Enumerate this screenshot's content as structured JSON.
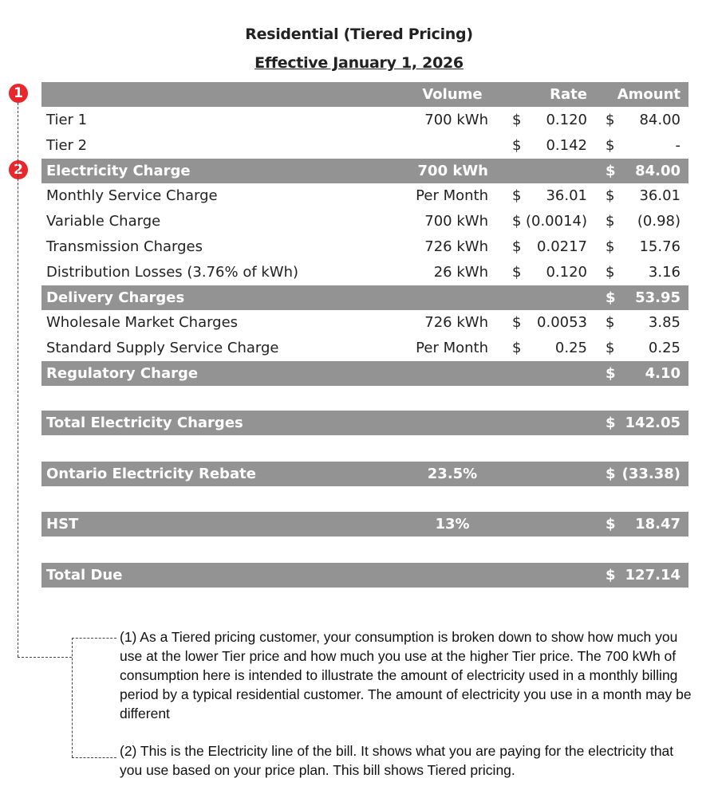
{
  "title": "Residential (Tiered Pricing)",
  "subtitle": "Effective January 1, 2026",
  "header": {
    "volume": "Volume",
    "rate": "Rate",
    "amount": "Amount"
  },
  "rows": [
    {
      "label": "Tier 1",
      "volume": "700 kWh",
      "rate_cur": "$",
      "rate": "0.120",
      "amt_cur": "$",
      "amount": "84.00",
      "style": "plain"
    },
    {
      "label": "Tier 2",
      "volume": "",
      "rate_cur": "$",
      "rate": "0.142",
      "amt_cur": "$",
      "amount": "-",
      "style": "plain"
    },
    {
      "label": "Electricity Charge",
      "volume": "700 kWh",
      "rate_cur": "",
      "rate": "",
      "amt_cur": "$",
      "amount": "84.00",
      "style": "gray"
    },
    {
      "label": "Monthly Service Charge",
      "volume": "Per Month",
      "rate_cur": "$",
      "rate": "36.01",
      "amt_cur": "$",
      "amount": "36.01",
      "style": "plain"
    },
    {
      "label": "Variable Charge",
      "volume": "700 kWh",
      "rate_cur": "$",
      "rate": "(0.0014)",
      "amt_cur": "$",
      "amount": "(0.98)",
      "style": "plain"
    },
    {
      "label": "Transmission Charges",
      "volume": "726 kWh",
      "rate_cur": "$",
      "rate": "0.0217",
      "amt_cur": "$",
      "amount": "15.76",
      "style": "plain"
    },
    {
      "label": "Distribution Losses (3.76% of kWh)",
      "volume": "26 kWh",
      "rate_cur": "$",
      "rate": "0.120",
      "amt_cur": "$",
      "amount": "3.16",
      "style": "plain"
    },
    {
      "label": "Delivery Charges",
      "volume": "",
      "rate_cur": "",
      "rate": "",
      "amt_cur": "$",
      "amount": "53.95",
      "style": "gray"
    },
    {
      "label": "Wholesale Market Charges",
      "volume": "726 kWh",
      "rate_cur": "$",
      "rate": "0.0053",
      "amt_cur": "$",
      "amount": "3.85",
      "style": "plain"
    },
    {
      "label": "Standard Supply Service Charge",
      "volume": "Per Month",
      "rate_cur": "$",
      "rate": "0.25",
      "amt_cur": "$",
      "amount": "0.25",
      "style": "plain"
    },
    {
      "label": "Regulatory Charge",
      "volume": "",
      "rate_cur": "",
      "rate": "",
      "amt_cur": "$",
      "amount": "4.10",
      "style": "gray"
    }
  ],
  "totals": [
    {
      "label": "Total Electricity Charges",
      "volume": "",
      "amt_cur": "$",
      "amount": "142.05"
    },
    {
      "label": "Ontario Electricity Rebate",
      "volume": "23.5%",
      "amt_cur": "$",
      "amount": "(33.38)"
    },
    {
      "label": "HST",
      "volume": "13%",
      "amt_cur": "$",
      "amount": "18.47"
    },
    {
      "label": "Total Due",
      "volume": "",
      "amt_cur": "$",
      "amount": "127.14"
    }
  ],
  "callouts": {
    "badge1": "1",
    "badge2": "2",
    "color": "#e8262b"
  },
  "notes": [
    "(1) As a Tiered pricing customer, your consumption is broken down to show how much you use at the lower Tier price and how much you use at the higher Tier price. The 700 kWh of consumption here is intended to illustrate the amount of electricity used in a monthly billing period by a typical residential customer. The amount of electricity you use in a month may be different",
    "(2) This is the Electricity line of the bill. It shows what you are paying for the electricity that you use based on your price plan. This bill shows Tiered pricing."
  ]
}
